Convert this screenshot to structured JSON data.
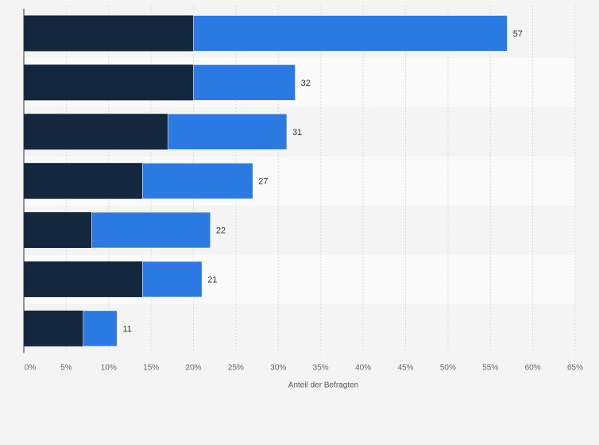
{
  "chart_data": {
    "type": "bar",
    "orientation": "horizontal",
    "stacked": true,
    "title": "",
    "xlabel": "Anteil der Befragten",
    "ylabel": "",
    "xlim": [
      0,
      65
    ],
    "ticks": [
      0,
      5,
      10,
      15,
      20,
      25,
      30,
      35,
      40,
      45,
      50,
      55,
      60,
      65
    ],
    "tick_labels": [
      "0%",
      "5%",
      "10%",
      "15%",
      "20%",
      "25%",
      "30%",
      "35%",
      "40%",
      "45%",
      "50%",
      "55%",
      "60%",
      "65%"
    ],
    "grid": true,
    "categories": [
      "",
      "",
      "",
      "",
      "",
      "",
      ""
    ],
    "series": [
      {
        "color": "#13283f",
        "values": [
          20,
          20,
          17,
          14,
          8,
          14,
          7
        ]
      },
      {
        "color": "#2a7ae2",
        "values": [
          37,
          12,
          14,
          13,
          14,
          7,
          4
        ]
      }
    ],
    "totals": [
      57,
      32,
      31,
      27,
      22,
      21,
      11
    ],
    "total_labels": [
      "57",
      "32",
      "31",
      "27",
      "22",
      "21",
      "11"
    ]
  }
}
